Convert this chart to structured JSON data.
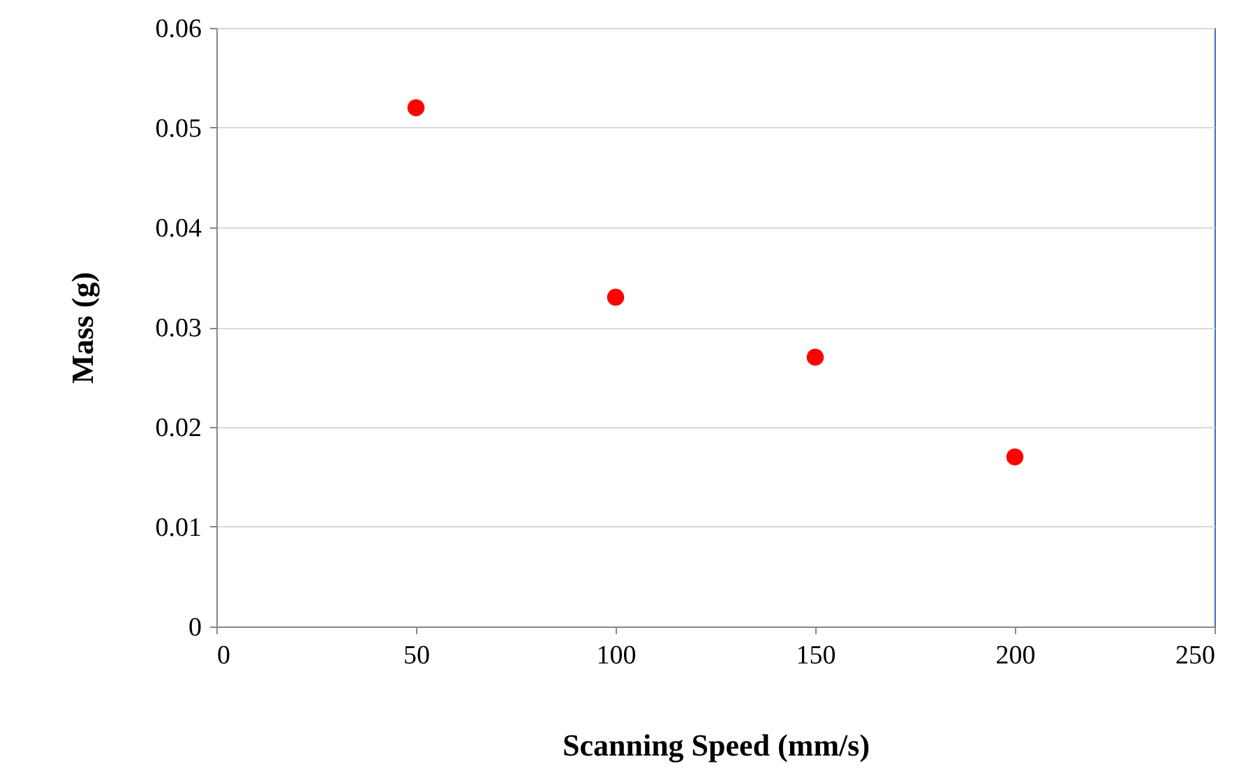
{
  "chart_data": {
    "type": "scatter",
    "xlabel": "Scanning Speed (mm/s)",
    "ylabel": "Mass (g)",
    "x": [
      50,
      100,
      150,
      200
    ],
    "series": [
      {
        "color": "#ff0000",
        "values": [
          0.052,
          0.033,
          0.027,
          0.017
        ]
      }
    ],
    "xlim": [
      0,
      250
    ],
    "xticks": [
      0,
      50,
      100,
      150,
      200,
      250
    ],
    "ylim": [
      0,
      0.06
    ],
    "yticks": [
      {
        "value": 0,
        "label": "0"
      },
      0.01,
      0.02,
      0.03,
      0.04,
      0.05,
      0.06
    ],
    "grid": "y",
    "marker": "circle",
    "legend": false
  }
}
